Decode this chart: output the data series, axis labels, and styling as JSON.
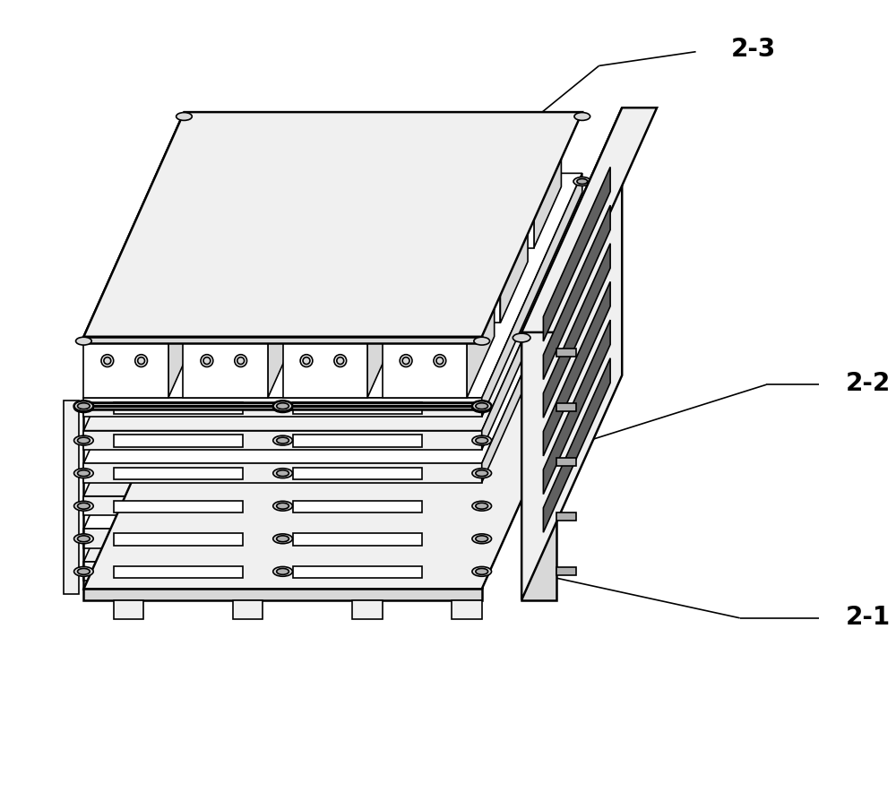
{
  "background_color": "#ffffff",
  "line_color": "#000000",
  "label_23": "2-3",
  "label_22": "2-2",
  "label_21": "2-1",
  "figsize": [
    10.0,
    8.95
  ],
  "dpi": 100,
  "lw_main": 1.8,
  "lw_thin": 1.2,
  "lw_thick": 2.5,
  "fill_light": "#f0f0f0",
  "fill_med": "#d8d8d8",
  "fill_dark": "#b0b0b0",
  "fill_white": "#ffffff",
  "fill_darkest": "#606060"
}
